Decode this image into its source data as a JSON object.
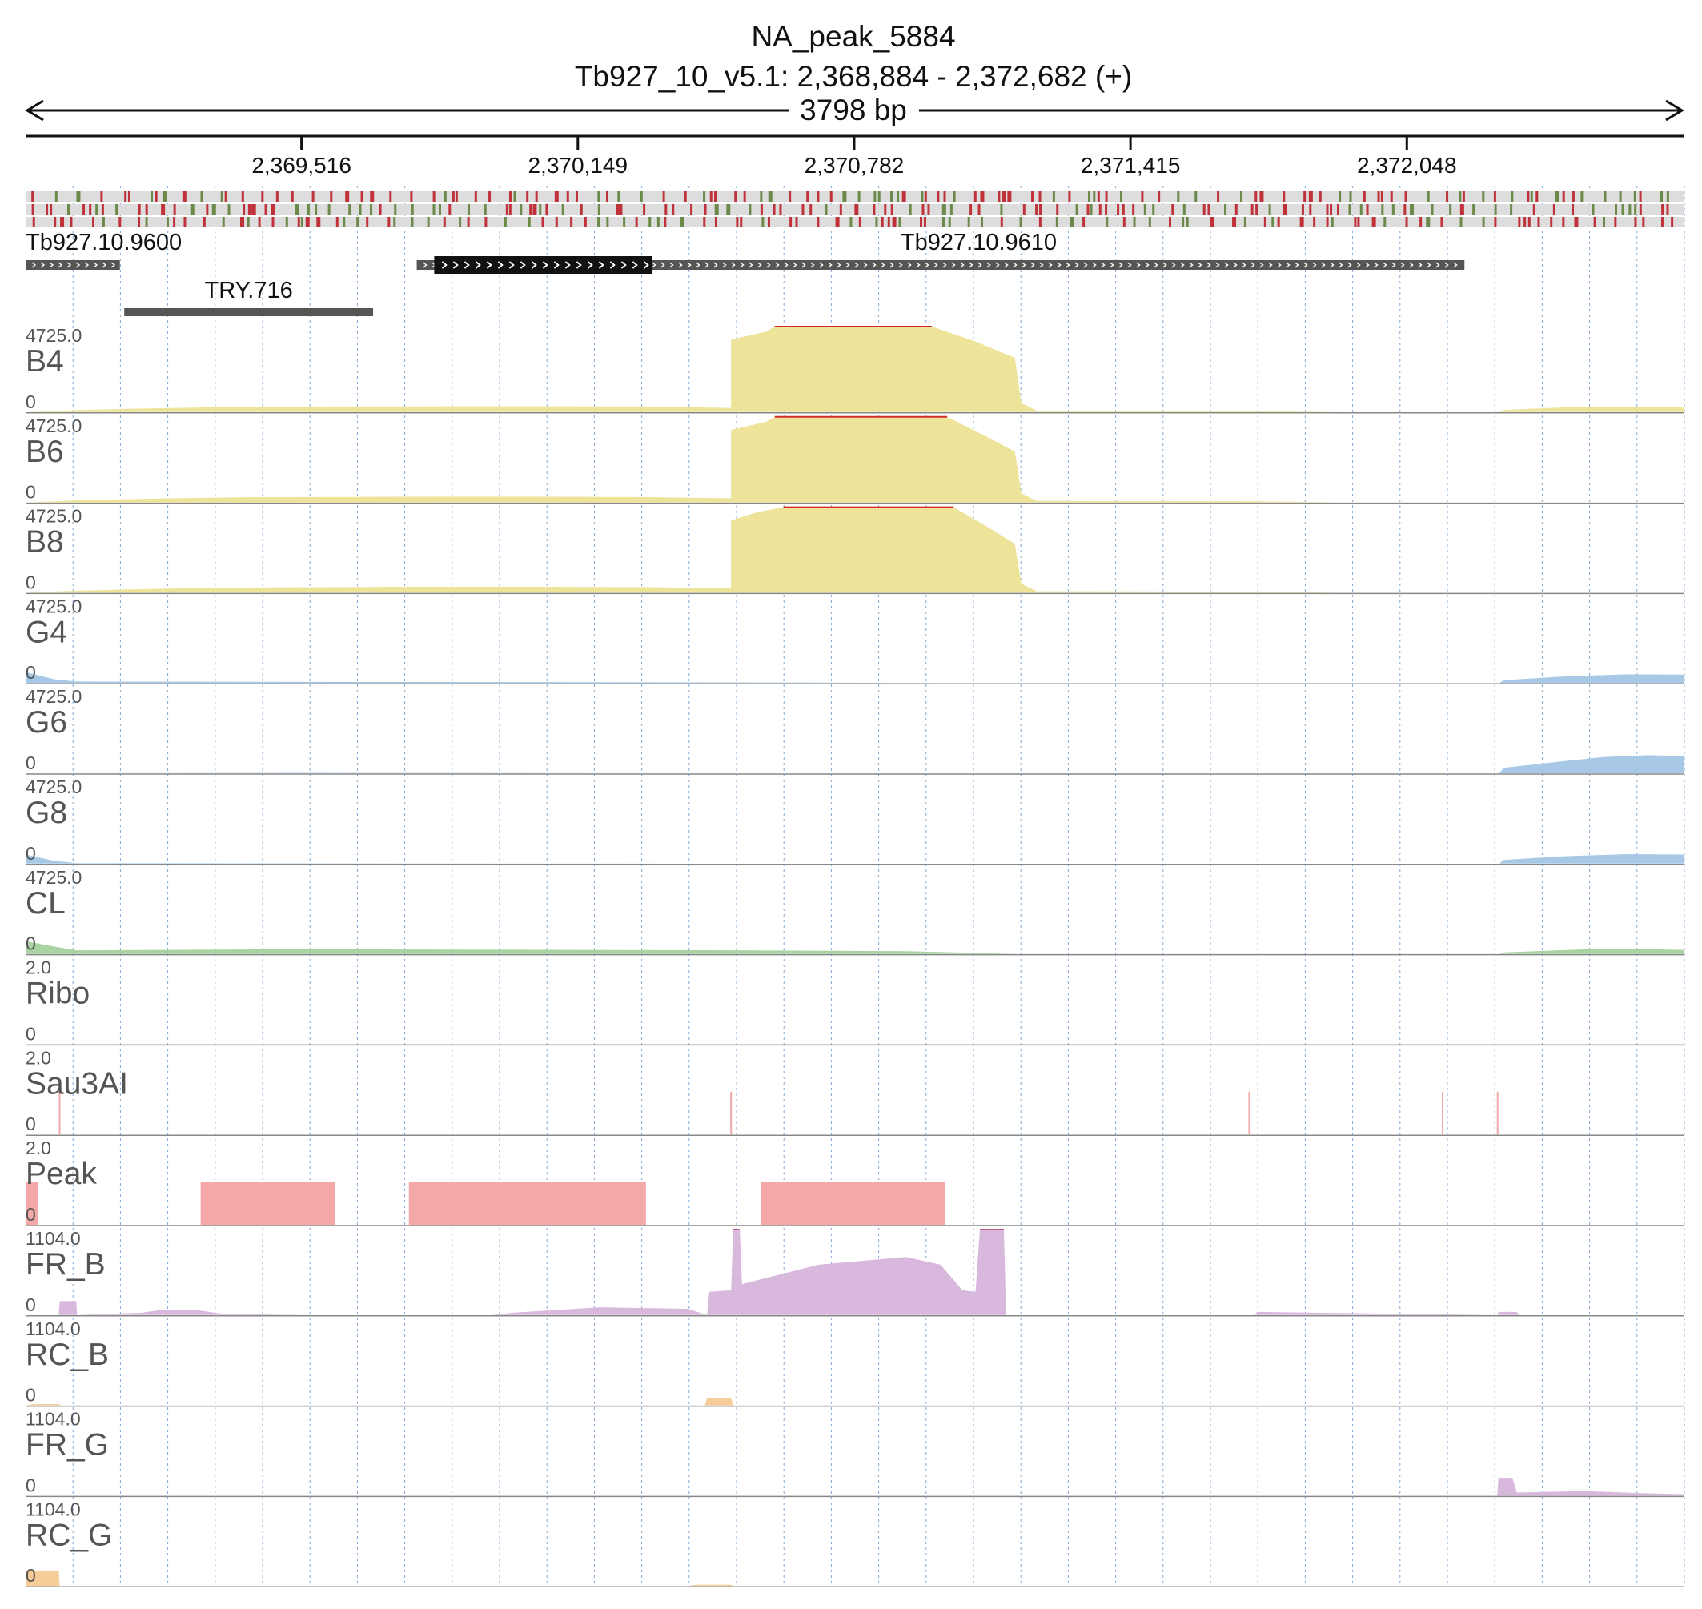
{
  "chart_data": {
    "type": "area",
    "title": "NA_peak_5884",
    "subtitle": "Tb927_10_v5.1: 2,368,884 - 2,372,682 (+)",
    "span_label": "3798 bp",
    "locus": {
      "chrom": "Tb927_10_v5.1",
      "start": 2368884,
      "end": 2372682,
      "strand": "+"
    },
    "ruler_ticks": [
      2369516,
      2370149,
      2370782,
      2371415,
      2372048
    ],
    "ruler_labels": [
      "2,369,516",
      "2,370,149",
      "2,370,782",
      "2,371,415",
      "2,372,048"
    ],
    "grid": true,
    "sequence_frames": {
      "colors": {
        "background": "#dddddd",
        "stop": "#c0323a",
        "start": "#6b8a4a"
      }
    },
    "genes": [
      {
        "name": "Tb927.10.9600",
        "start": 2368884,
        "end": 2369100,
        "strand": "+",
        "cds": null
      },
      {
        "name": "Tb927.10.9610",
        "start": 2369780,
        "end": 2372180,
        "strand": "+",
        "cds": [
          2369820,
          2370320
        ]
      }
    ],
    "features": [
      {
        "name": "TRY.716",
        "start": 2369110,
        "end": 2369680
      }
    ],
    "tracks": [
      {
        "name": "B4",
        "max": "4725.0",
        "min": "0",
        "kind": "area",
        "color": "#ede49a",
        "clip": "#d22c2c",
        "points": [
          [
            2368884,
            0
          ],
          [
            2368950,
            60
          ],
          [
            2369000,
            110
          ],
          [
            2369100,
            170
          ],
          [
            2369200,
            220
          ],
          [
            2369400,
            300
          ],
          [
            2369700,
            310
          ],
          [
            2370000,
            320
          ],
          [
            2370300,
            310
          ],
          [
            2370500,
            230
          ],
          [
            2370500,
            4000
          ],
          [
            2370580,
            4450
          ],
          [
            2370600,
            4725
          ],
          [
            2370960,
            4725
          ],
          [
            2371060,
            3900
          ],
          [
            2371150,
            3000
          ],
          [
            2371165,
            500
          ],
          [
            2371200,
            80
          ],
          [
            2371700,
            70
          ],
          [
            2371900,
            0
          ],
          [
            2372260,
            0
          ],
          [
            2372270,
            120
          ],
          [
            2372450,
            300
          ],
          [
            2372600,
            280
          ],
          [
            2372682,
            250
          ]
        ]
      },
      {
        "name": "B6",
        "max": "4725.0",
        "min": "0",
        "kind": "area",
        "color": "#ede49a",
        "clip": "#d22c2c",
        "points": [
          [
            2368884,
            0
          ],
          [
            2368950,
            60
          ],
          [
            2369000,
            110
          ],
          [
            2369100,
            170
          ],
          [
            2369200,
            220
          ],
          [
            2369400,
            290
          ],
          [
            2369700,
            310
          ],
          [
            2370000,
            320
          ],
          [
            2370300,
            300
          ],
          [
            2370500,
            230
          ],
          [
            2370500,
            4000
          ],
          [
            2370580,
            4450
          ],
          [
            2370600,
            4725
          ],
          [
            2370995,
            4725
          ],
          [
            2371080,
            3700
          ],
          [
            2371150,
            2800
          ],
          [
            2371165,
            500
          ],
          [
            2371200,
            80
          ],
          [
            2371700,
            60
          ],
          [
            2371900,
            0
          ],
          [
            2372682,
            0
          ]
        ]
      },
      {
        "name": "B8",
        "max": "4725.0",
        "min": "0",
        "kind": "area",
        "color": "#ede49a",
        "clip": "#d22c2c",
        "points": [
          [
            2368884,
            0
          ],
          [
            2368950,
            60
          ],
          [
            2369000,
            110
          ],
          [
            2369100,
            170
          ],
          [
            2369200,
            220
          ],
          [
            2369400,
            290
          ],
          [
            2369700,
            320
          ],
          [
            2370000,
            330
          ],
          [
            2370300,
            310
          ],
          [
            2370500,
            240
          ],
          [
            2370500,
            4000
          ],
          [
            2370560,
            4450
          ],
          [
            2370620,
            4725
          ],
          [
            2371010,
            4725
          ],
          [
            2371090,
            3600
          ],
          [
            2371150,
            2700
          ],
          [
            2371165,
            500
          ],
          [
            2371200,
            80
          ],
          [
            2371700,
            60
          ],
          [
            2371900,
            0
          ],
          [
            2372682,
            0
          ]
        ]
      },
      {
        "name": "G4",
        "max": "4725.0",
        "min": "0",
        "kind": "area",
        "color": "#a8c9e6",
        "clip": "#d22c2c",
        "points": [
          [
            2368884,
            600
          ],
          [
            2368950,
            200
          ],
          [
            2369000,
            80
          ],
          [
            2369500,
            60
          ],
          [
            2370000,
            50
          ],
          [
            2370500,
            30
          ],
          [
            2371000,
            0
          ],
          [
            2372260,
            0
          ],
          [
            2372270,
            150
          ],
          [
            2372400,
            350
          ],
          [
            2372550,
            480
          ],
          [
            2372682,
            460
          ]
        ]
      },
      {
        "name": "G6",
        "max": "4725.0",
        "min": "0",
        "kind": "area",
        "color": "#a8c9e6",
        "clip": "#d22c2c",
        "points": [
          [
            2368884,
            0
          ],
          [
            2369500,
            20
          ],
          [
            2370500,
            0
          ],
          [
            2372260,
            0
          ],
          [
            2372270,
            300
          ],
          [
            2372400,
            650
          ],
          [
            2372500,
            900
          ],
          [
            2372600,
            1000
          ],
          [
            2372682,
            950
          ]
        ]
      },
      {
        "name": "G8",
        "max": "4725.0",
        "min": "0",
        "kind": "area",
        "color": "#a8c9e6",
        "clip": "#d22c2c",
        "points": [
          [
            2368884,
            500
          ],
          [
            2368950,
            150
          ],
          [
            2369000,
            30
          ],
          [
            2370500,
            0
          ],
          [
            2372260,
            0
          ],
          [
            2372270,
            200
          ],
          [
            2372400,
            400
          ],
          [
            2372550,
            520
          ],
          [
            2372682,
            500
          ]
        ]
      },
      {
        "name": "CL",
        "max": "4725.0",
        "min": "0",
        "kind": "area",
        "color": "#a9d4a1",
        "clip": "#d22c2c",
        "points": [
          [
            2368884,
            700
          ],
          [
            2368950,
            400
          ],
          [
            2369000,
            200
          ],
          [
            2369200,
            220
          ],
          [
            2369500,
            260
          ],
          [
            2370000,
            230
          ],
          [
            2370500,
            200
          ],
          [
            2370900,
            150
          ],
          [
            2371150,
            0
          ],
          [
            2372260,
            0
          ],
          [
            2372270,
            80
          ],
          [
            2372450,
            250
          ],
          [
            2372600,
            260
          ],
          [
            2372682,
            220
          ]
        ]
      },
      {
        "name": "Ribo",
        "max": "2.0",
        "min": "0",
        "kind": "area",
        "color": "#cccccc",
        "clip": "#d22c2c",
        "points": []
      },
      {
        "name": "Sau3AI",
        "max": "2.0",
        "min": "0",
        "kind": "sites",
        "color": "#f4a8a8",
        "clip": "#d22c2c",
        "sites": [
          2368962,
          2370500,
          2371687,
          2372130,
          2372256
        ],
        "height": 1.0
      },
      {
        "name": "Peak",
        "max": "2.0",
        "min": "0",
        "kind": "blocks",
        "color": "#f4a8a8",
        "clip": "#d22c2c",
        "blocks": [
          [
            2368884,
            2368912
          ],
          [
            2369285,
            2369592
          ],
          [
            2369762,
            2370305
          ],
          [
            2370569,
            2370990
          ]
        ],
        "height": 1.0
      },
      {
        "name": "FR_B",
        "max": "1104.0",
        "min": "0",
        "kind": "area",
        "color": "#d9b8dd",
        "clip": "#c0607a",
        "points": [
          [
            2368884,
            0
          ],
          [
            2368960,
            0
          ],
          [
            2368962,
            180
          ],
          [
            2369000,
            180
          ],
          [
            2369002,
            0
          ],
          [
            2369150,
            30
          ],
          [
            2369200,
            70
          ],
          [
            2369280,
            60
          ],
          [
            2369330,
            20
          ],
          [
            2369400,
            10
          ],
          [
            2369550,
            0
          ],
          [
            2369950,
            0
          ],
          [
            2370000,
            30
          ],
          [
            2370200,
            100
          ],
          [
            2370400,
            80
          ],
          [
            2370445,
            0
          ],
          [
            2370450,
            300
          ],
          [
            2370500,
            320
          ],
          [
            2370505,
            1104
          ],
          [
            2370520,
            1104
          ],
          [
            2370525,
            400
          ],
          [
            2370560,
            450
          ],
          [
            2370700,
            650
          ],
          [
            2370800,
            700
          ],
          [
            2370900,
            750
          ],
          [
            2370980,
            650
          ],
          [
            2371030,
            320
          ],
          [
            2371060,
            300
          ],
          [
            2371070,
            1104
          ],
          [
            2371125,
            1104
          ],
          [
            2371130,
            0
          ],
          [
            2371700,
            0
          ],
          [
            2371705,
            40
          ],
          [
            2372256,
            0
          ],
          [
            2372258,
            40
          ],
          [
            2372300,
            40
          ],
          [
            2372305,
            0
          ],
          [
            2372682,
            0
          ]
        ]
      },
      {
        "name": "RC_B",
        "max": "1104.0",
        "min": "0",
        "kind": "area",
        "color": "#f6cd98",
        "clip": "#d22c2c",
        "points": [
          [
            2368884,
            0
          ],
          [
            2368900,
            15
          ],
          [
            2368960,
            15
          ],
          [
            2368965,
            0
          ],
          [
            2370440,
            0
          ],
          [
            2370445,
            90
          ],
          [
            2370500,
            90
          ],
          [
            2370505,
            0
          ],
          [
            2372682,
            0
          ]
        ]
      },
      {
        "name": "FR_G",
        "max": "1104.0",
        "min": "0",
        "kind": "area",
        "color": "#d9b8dd",
        "clip": "#c0607a",
        "points": [
          [
            2368884,
            0
          ],
          [
            2372255,
            0
          ],
          [
            2372258,
            230
          ],
          [
            2372290,
            230
          ],
          [
            2372300,
            40
          ],
          [
            2372450,
            60
          ],
          [
            2372600,
            30
          ],
          [
            2372682,
            20
          ]
        ]
      },
      {
        "name": "RC_G",
        "max": "1104.0",
        "min": "0",
        "kind": "area",
        "color": "#f6cd98",
        "clip": "#d22c2c",
        "points": [
          [
            2368884,
            0
          ],
          [
            2368885,
            200
          ],
          [
            2368960,
            200
          ],
          [
            2368962,
            0
          ],
          [
            2370400,
            0
          ],
          [
            2370420,
            15
          ],
          [
            2370500,
            15
          ],
          [
            2370505,
            0
          ],
          [
            2372682,
            0
          ]
        ]
      }
    ]
  }
}
